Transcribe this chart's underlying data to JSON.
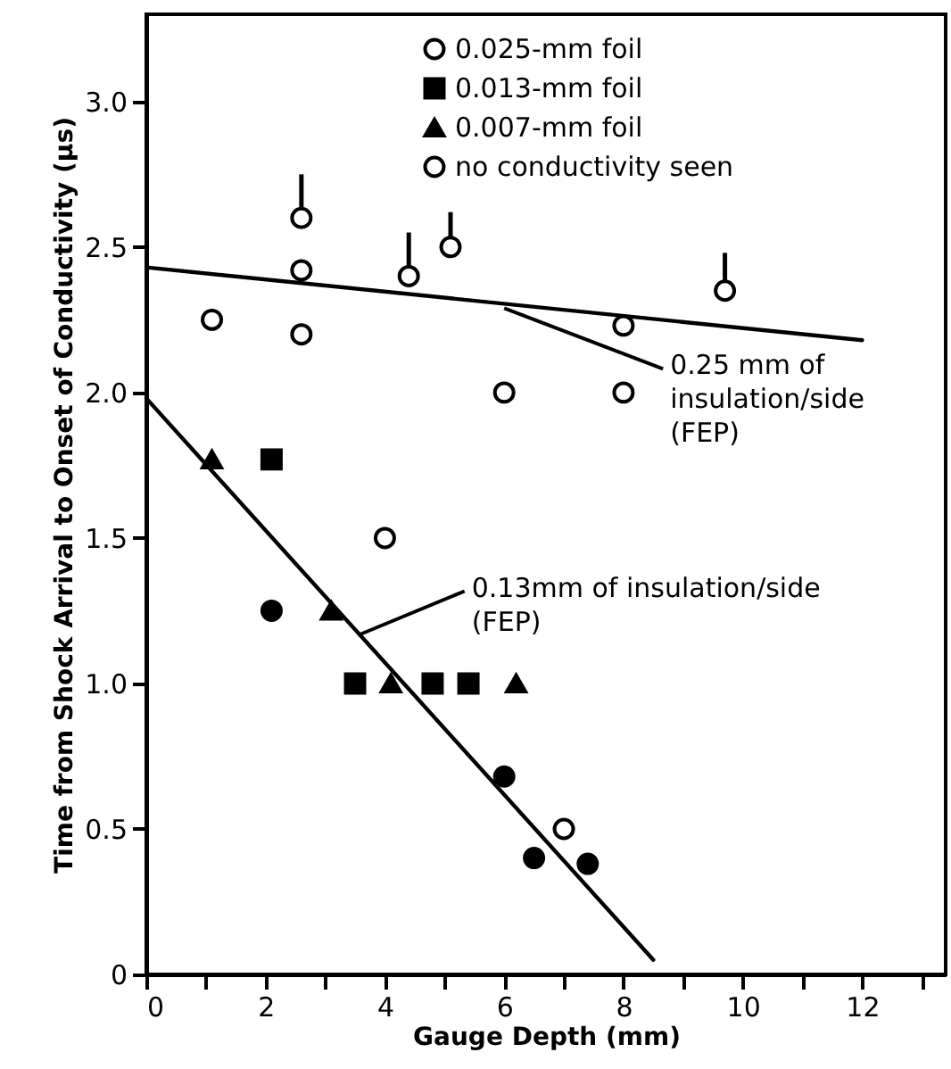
{
  "chart_data": {
    "type": "scatter",
    "xlabel": "Gauge Depth (mm)",
    "ylabel": "Time from Shock Arrival to Onset of Conductivity (μs)",
    "xlim": [
      0,
      13.4
    ],
    "ylim": [
      0,
      3.3
    ],
    "xticks": [
      0,
      {
        "value": 1,
        "label": null
      },
      2,
      {
        "value": 3,
        "label": null
      },
      4,
      {
        "value": 5,
        "label": null
      },
      6,
      {
        "value": 7,
        "label": null
      },
      8,
      {
        "value": 9,
        "label": null
      },
      10,
      {
        "value": 11,
        "label": null
      },
      12,
      {
        "value": 13,
        "label": null
      }
    ],
    "yticks": [
      0,
      {
        "value": 0.5,
        "label": "0.5"
      },
      {
        "value": 1,
        "label": "1.0"
      },
      {
        "value": 1.5,
        "label": "1.5"
      },
      {
        "value": 2,
        "label": "2.0"
      },
      {
        "value": 2.5,
        "label": "2.5"
      },
      {
        "value": 3,
        "label": "3.0"
      }
    ],
    "legend": "top",
    "grid": false,
    "series": [
      {
        "name": "0.025-mm foil",
        "marker": "circle",
        "color": "#ffffff",
        "x": [
          1.1,
          2.6,
          2.6,
          4.0,
          6.0,
          8.0,
          8.0,
          7.0
        ],
        "values": [
          2.25,
          2.2,
          2.42,
          1.5,
          2.0,
          2.0,
          2.23,
          0.5
        ]
      },
      {
        "marker": "circle",
        "color": "#000000",
        "x": [
          2.1,
          6.0,
          6.5,
          7.4
        ],
        "values": [
          1.25,
          0.68,
          0.4,
          0.38
        ]
      },
      {
        "name": "0.013-mm foil",
        "marker": "square",
        "color": "#000000",
        "x": [
          2.1,
          3.5,
          4.8,
          5.4
        ],
        "values": [
          1.77,
          1.0,
          1.0,
          1.0
        ]
      },
      {
        "name": "0.007-mm foil",
        "marker": "triangle",
        "color": "#000000",
        "x": [
          1.1,
          3.1,
          4.1,
          6.2
        ],
        "values": [
          1.77,
          1.25,
          1.0,
          1.0
        ]
      },
      {
        "name": "no conductivity seen",
        "marker": "circle",
        "color": "#ffffff",
        "x": [
          2.6,
          4.4,
          5.1,
          9.7
        ],
        "values": [
          2.6,
          2.4,
          2.5,
          2.35
        ],
        "errors": [
          [
            2.6,
            2.75
          ],
          [
            2.4,
            2.55
          ],
          [
            2.5,
            2.62
          ],
          [
            2.35,
            2.48
          ]
        ]
      },
      {
        "type": "line",
        "color": "#000000",
        "x": [
          0,
          12
        ],
        "values": [
          2.43,
          2.18
        ]
      },
      {
        "type": "line",
        "color": "#000000",
        "x": [
          0,
          8.5
        ],
        "values": [
          1.98,
          0.05
        ]
      }
    ],
    "annotations": [
      {
        "text": "0.25 mm of\ninsulation/side\n(FEP)",
        "x": 6,
        "y": 2.29
      },
      {
        "text": "0.13mm of insulation/side\n(FEP)",
        "x": 3.6,
        "y": 1.17
      }
    ]
  }
}
